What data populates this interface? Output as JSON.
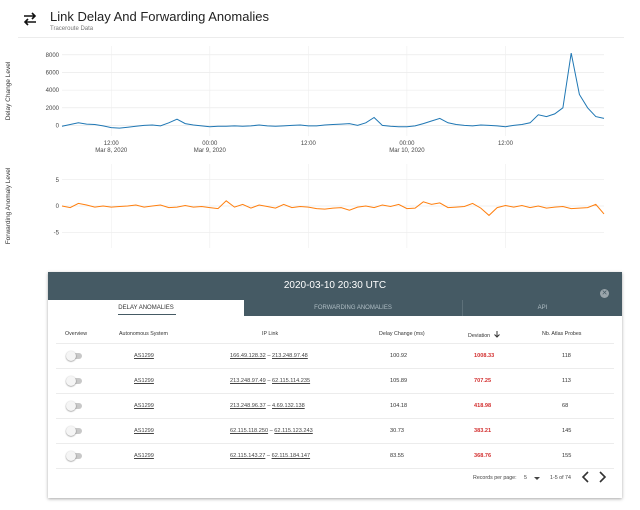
{
  "header": {
    "title": "Link Delay And Forwarding Anomalies",
    "subtitle": "Traceroute Data",
    "icon": "swap-arrows-icon"
  },
  "chart_data": [
    {
      "type": "line",
      "title": "",
      "ylabel": "Delay Change Level",
      "xlabel": "",
      "ylim": [
        -1200,
        9000
      ],
      "yticks": [
        0,
        2000,
        4000,
        6000,
        8000
      ],
      "grid": true,
      "color": "#1f77b4",
      "x_ticks": [
        {
          "x": 6,
          "label": "12:00"
        },
        {
          "x": 18,
          "label": "00:00"
        },
        {
          "x": 30,
          "label": "12:00"
        },
        {
          "x": 42,
          "label": "00:00"
        },
        {
          "x": 54,
          "label": "12:00"
        }
      ],
      "x_date_labels": [
        {
          "x": 6,
          "label": "Mar 8, 2020"
        },
        {
          "x": 18,
          "label": "Mar 9, 2020"
        },
        {
          "x": 42,
          "label": "Mar 10, 2020"
        }
      ],
      "series": [
        {
          "name": "",
          "x": [
            0,
            1,
            2,
            3,
            4,
            5,
            6,
            7,
            8,
            9,
            10,
            11,
            12,
            13,
            14,
            15,
            16,
            17,
            18,
            19,
            20,
            21,
            22,
            23,
            24,
            25,
            26,
            27,
            28,
            29,
            30,
            31,
            32,
            33,
            34,
            35,
            36,
            37,
            38,
            39,
            40,
            41,
            42,
            43,
            44,
            45,
            46,
            47,
            48,
            49,
            50,
            51,
            52,
            53,
            54,
            55,
            56,
            57,
            58,
            59,
            60,
            61,
            62,
            63,
            64,
            65,
            66
          ],
          "values": [
            -100,
            100,
            300,
            150,
            100,
            -50,
            -250,
            -300,
            -200,
            -100,
            0,
            50,
            -50,
            300,
            700,
            200,
            50,
            -50,
            -150,
            -100,
            -100,
            -50,
            -100,
            -50,
            50,
            -50,
            -100,
            -50,
            0,
            50,
            -50,
            -50,
            50,
            100,
            150,
            200,
            0,
            300,
            900,
            0,
            -100,
            -150,
            -150,
            -50,
            200,
            500,
            800,
            300,
            100,
            0,
            -50,
            50,
            0,
            -50,
            -150,
            0,
            100,
            300,
            1200,
            1000,
            1300,
            2000,
            8200,
            3500,
            2000,
            1000,
            800
          ]
        }
      ]
    },
    {
      "type": "line",
      "title": "",
      "ylabel": "Forwarding Anomaly Level",
      "xlabel": "",
      "ylim": [
        -8,
        8
      ],
      "yticks": [
        -5,
        0,
        5
      ],
      "grid": true,
      "color": "#ff7f0e",
      "series": [
        {
          "name": "",
          "x": [
            0,
            1,
            2,
            3,
            4,
            5,
            6,
            7,
            8,
            9,
            10,
            11,
            12,
            13,
            14,
            15,
            16,
            17,
            18,
            19,
            20,
            21,
            22,
            23,
            24,
            25,
            26,
            27,
            28,
            29,
            30,
            31,
            32,
            33,
            34,
            35,
            36,
            37,
            38,
            39,
            40,
            41,
            42,
            43,
            44,
            45,
            46,
            47,
            48,
            49,
            50,
            51,
            52,
            53,
            54,
            55,
            56,
            57,
            58,
            59,
            60,
            61,
            62,
            63,
            64,
            65,
            66
          ],
          "values": [
            0,
            -0.3,
            0.5,
            0.2,
            -0.2,
            0,
            -0.2,
            -0.1,
            0,
            0.2,
            -0.2,
            0,
            0.2,
            -0.3,
            -0.2,
            0.1,
            -0.2,
            -0.1,
            -0.3,
            -0.5,
            1.0,
            -0.2,
            0.3,
            -0.4,
            0.2,
            -0.1,
            -0.4,
            0.3,
            -0.3,
            -0.1,
            -0.2,
            -0.5,
            -0.6,
            -0.4,
            -0.3,
            -0.8,
            -0.2,
            0,
            -0.3,
            0.2,
            -0.1,
            0.3,
            -0.5,
            -0.4,
            0.8,
            0.3,
            0.6,
            -0.3,
            -0.2,
            -0.1,
            0.5,
            -0.4,
            -1.8,
            -0.3,
            0.1,
            -0.2,
            0.1,
            -0.3,
            0,
            -0.4,
            -0.2,
            -0.1,
            -0.5,
            -0.4,
            -0.3,
            0.3,
            -1.5
          ]
        }
      ]
    }
  ],
  "panel": {
    "title": "2020-03-10 20:30 UTC",
    "close_icon": "close-icon",
    "tabs": [
      {
        "label": "DELAY ANOMALIES",
        "active": true
      },
      {
        "label": "FORWARDING ANOMALIES",
        "active": false
      },
      {
        "label": "API",
        "active": false
      }
    ],
    "columns": {
      "overview": "Overview",
      "asn": "Autonomous System",
      "link": "IP Link",
      "delay": "Delay Change (ms)",
      "deviation": "Deviation",
      "probes": "Nb. Atlas Probes"
    },
    "sort_icon": "arrow-down-icon",
    "rows": [
      {
        "asn": "AS1299",
        "ip_a": "166.49.128.32",
        "ip_b": "213.248.97.48",
        "delay": "100.92",
        "deviation": "1008.33",
        "probes": "118"
      },
      {
        "asn": "AS1299",
        "ip_a": "213.248.97.49",
        "ip_b": "62.115.114.235",
        "delay": "105.89",
        "deviation": "707.25",
        "probes": "113"
      },
      {
        "asn": "AS1299",
        "ip_a": "213.248.96.37",
        "ip_b": "4.69.132.138",
        "delay": "104.18",
        "deviation": "418.98",
        "probes": "68"
      },
      {
        "asn": "AS1299",
        "ip_a": "62.115.118.250",
        "ip_b": "62.115.123.243",
        "delay": "30.73",
        "deviation": "383.21",
        "probes": "145"
      },
      {
        "asn": "AS1299",
        "ip_a": "62.115.143.27",
        "ip_b": "62.115.184.147",
        "delay": "83.55",
        "deviation": "368.76",
        "probes": "155"
      }
    ],
    "link_sep": " – ",
    "footer": {
      "records_label": "Records per page:",
      "per_page": "5",
      "range": "1-5 of 74"
    }
  }
}
